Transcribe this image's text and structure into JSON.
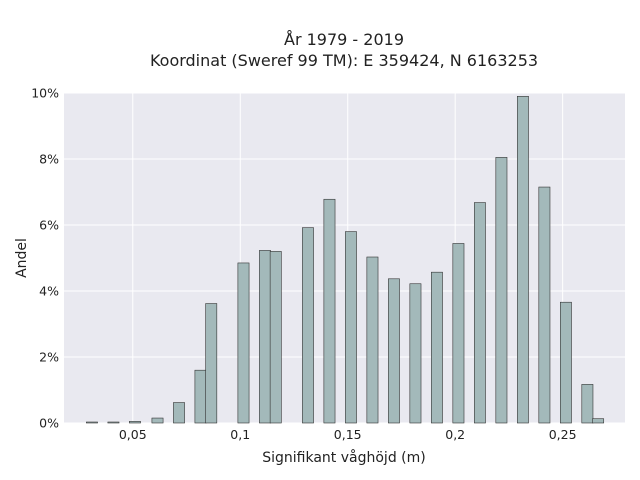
{
  "chart_data": {
    "type": "bar",
    "title_line1": "År 1979 - 2019",
    "title_line2": "Koordinat (Sweref 99 TM): E 359424, N 6163253",
    "xlabel": "Signifikant våghöjd (m)",
    "ylabel": "Andel",
    "xlim": [
      0.018,
      0.279
    ],
    "ylim": [
      0,
      0.1
    ],
    "x_ticks": [
      {
        "value": 0.05,
        "label": "0,05"
      },
      {
        "value": 0.1,
        "label": "0,1"
      },
      {
        "value": 0.15,
        "label": "0,15"
      },
      {
        "value": 0.2,
        "label": "0,2"
      },
      {
        "value": 0.25,
        "label": "0,25"
      }
    ],
    "y_ticks": [
      {
        "value": 0,
        "label": "0%"
      },
      {
        "value": 0.02,
        "label": "2%"
      },
      {
        "value": 0.04,
        "label": "4%"
      },
      {
        "value": 0.06,
        "label": "6%"
      },
      {
        "value": 0.08,
        "label": "8%"
      },
      {
        "value": 0.1,
        "label": "10%"
      }
    ],
    "bar_width": 0.0052,
    "x": [
      0.031,
      0.041,
      0.051,
      0.0615,
      0.0715,
      0.0815,
      0.0865,
      0.1015,
      0.1115,
      0.1165,
      0.1315,
      0.1415,
      0.1515,
      0.1615,
      0.1715,
      0.1815,
      0.1915,
      0.2015,
      0.2115,
      0.2215,
      0.2315,
      0.2415,
      0.2515,
      0.2615,
      0.2665
    ],
    "values": [
      0.0003,
      0.0003,
      0.0005,
      0.0015,
      0.0062,
      0.016,
      0.0362,
      0.0485,
      0.0523,
      0.052,
      0.0592,
      0.0678,
      0.058,
      0.0503,
      0.0437,
      0.0422,
      0.0457,
      0.0544,
      0.0668,
      0.0805,
      0.099,
      0.0715,
      0.0366,
      0.0117,
      0.0013
    ],
    "grid": true,
    "colors": {
      "background": "#e9e9f0",
      "bar": "#a3b9ba",
      "bar_edge": "#333333",
      "grid": "#ffffff"
    }
  }
}
